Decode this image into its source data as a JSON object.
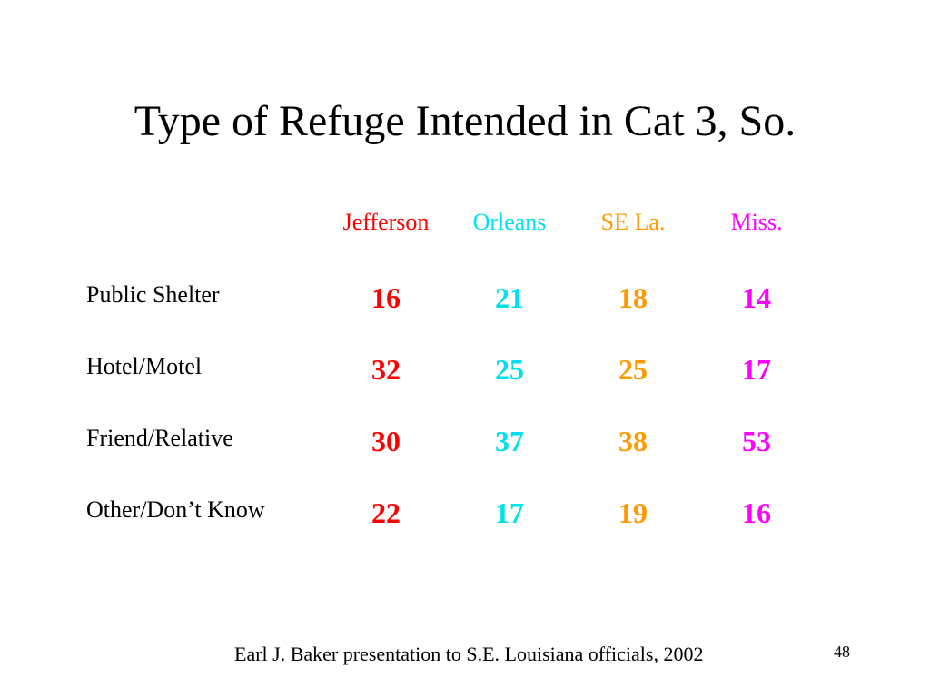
{
  "slide": {
    "title": "Type of Refuge Intended in Cat 3, So.",
    "colors": {
      "jefferson": "#ff0000",
      "orleans": "#00e0ee",
      "se_la": "#ff9900",
      "miss": "#ff00ff"
    },
    "columns": [
      "Jefferson",
      "Orleans",
      "SE La.",
      "Miss."
    ],
    "rows": [
      {
        "label": "Public Shelter",
        "values": [
          "16",
          "21",
          "18",
          "14"
        ]
      },
      {
        "label": "Hotel/Motel",
        "values": [
          "32",
          "25",
          "25",
          "17"
        ]
      },
      {
        "label": "Friend/Relative",
        "values": [
          "30",
          "37",
          "38",
          "53"
        ]
      },
      {
        "label": "Other/Don’t Know",
        "values": [
          "22",
          "17",
          "19",
          "16"
        ]
      }
    ],
    "footer": "Earl J. Baker presentation to S.E. Louisiana officials, 2002",
    "page_number": "48"
  }
}
